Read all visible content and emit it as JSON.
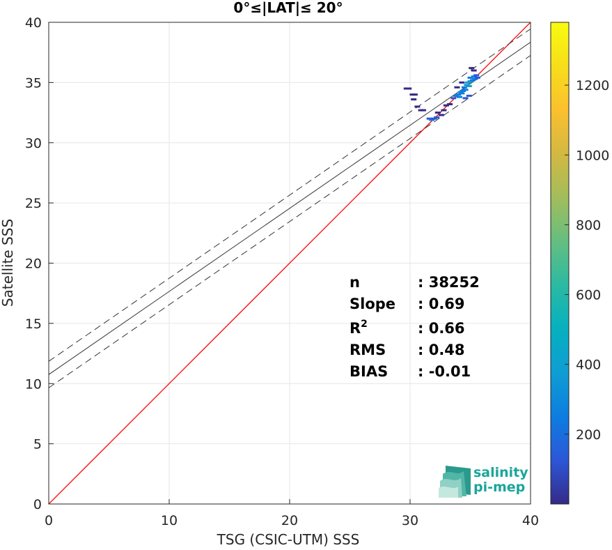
{
  "chart_data": {
    "type": "scatter",
    "title": "0°≤|LAT|≤ 20°",
    "xlabel": "TSG (CSIC-UTM) SSS",
    "ylabel": "Satellite SSS",
    "xlim": [
      0,
      40
    ],
    "ylim": [
      0,
      40
    ],
    "xticks": [
      0,
      10,
      20,
      30,
      40
    ],
    "yticks": [
      0,
      5,
      10,
      15,
      20,
      25,
      30,
      35,
      40
    ],
    "grid": true,
    "one_to_one_line": {
      "from": [
        0,
        0
      ],
      "to": [
        40,
        40
      ],
      "color": "#ff0000"
    },
    "regression": {
      "slope": 0.69,
      "intercept": 10.75,
      "band_offset": 1.1
    },
    "density_points": [
      {
        "x": 29.7,
        "y": 34.5,
        "count": 40
      },
      {
        "x": 29.9,
        "y": 34.5,
        "count": 40
      },
      {
        "x": 30.2,
        "y": 34.0,
        "count": 30
      },
      {
        "x": 30.4,
        "y": 34.0,
        "count": 30
      },
      {
        "x": 30.3,
        "y": 33.6,
        "count": 30
      },
      {
        "x": 30.6,
        "y": 33.0,
        "count": 30
      },
      {
        "x": 30.9,
        "y": 32.7,
        "count": 30
      },
      {
        "x": 31.1,
        "y": 32.7,
        "count": 30
      },
      {
        "x": 31.6,
        "y": 32.0,
        "count": 120
      },
      {
        "x": 31.8,
        "y": 31.9,
        "count": 200
      },
      {
        "x": 32.0,
        "y": 32.0,
        "count": 180
      },
      {
        "x": 32.2,
        "y": 32.1,
        "count": 120
      },
      {
        "x": 32.3,
        "y": 32.5,
        "count": 60
      },
      {
        "x": 32.6,
        "y": 32.3,
        "count": 60
      },
      {
        "x": 32.8,
        "y": 32.7,
        "count": 60
      },
      {
        "x": 33.0,
        "y": 33.1,
        "count": 60
      },
      {
        "x": 33.3,
        "y": 33.2,
        "count": 60
      },
      {
        "x": 33.6,
        "y": 33.7,
        "count": 150
      },
      {
        "x": 33.8,
        "y": 33.9,
        "count": 250
      },
      {
        "x": 34.0,
        "y": 34.0,
        "count": 300
      },
      {
        "x": 34.1,
        "y": 33.8,
        "count": 260
      },
      {
        "x": 34.2,
        "y": 34.2,
        "count": 350
      },
      {
        "x": 34.3,
        "y": 34.1,
        "count": 300
      },
      {
        "x": 34.4,
        "y": 34.3,
        "count": 280
      },
      {
        "x": 34.5,
        "y": 34.6,
        "count": 300
      },
      {
        "x": 34.6,
        "y": 34.4,
        "count": 300
      },
      {
        "x": 34.7,
        "y": 34.8,
        "count": 350
      },
      {
        "x": 34.8,
        "y": 35.0,
        "count": 400
      },
      {
        "x": 34.9,
        "y": 34.7,
        "count": 320
      },
      {
        "x": 35.0,
        "y": 35.1,
        "count": 360
      },
      {
        "x": 35.0,
        "y": 35.4,
        "count": 260
      },
      {
        "x": 35.2,
        "y": 35.2,
        "count": 300
      },
      {
        "x": 35.3,
        "y": 35.5,
        "count": 240
      },
      {
        "x": 35.4,
        "y": 35.3,
        "count": 200
      },
      {
        "x": 35.5,
        "y": 35.6,
        "count": 160
      },
      {
        "x": 35.6,
        "y": 35.4,
        "count": 120
      },
      {
        "x": 35.1,
        "y": 36.2,
        "count": 40
      },
      {
        "x": 35.3,
        "y": 36.0,
        "count": 40
      },
      {
        "x": 34.6,
        "y": 33.7,
        "count": 80
      },
      {
        "x": 34.9,
        "y": 33.9,
        "count": 80
      },
      {
        "x": 34.3,
        "y": 35.0,
        "count": 60
      },
      {
        "x": 33.9,
        "y": 34.6,
        "count": 60
      }
    ],
    "colorbar": {
      "min": 0,
      "max": 1380,
      "ticks": [
        200,
        400,
        600,
        800,
        1000,
        1200
      ],
      "colors": [
        "#352a87",
        "#2c57d8",
        "#0d7de0",
        "#0f9dd3",
        "#06b0c0",
        "#2bbaa2",
        "#65be80",
        "#a2bd5c",
        "#d3b842",
        "#fbc02e",
        "#f7de1b",
        "#f9fb0e"
      ]
    },
    "stats": [
      {
        "label": "n",
        "value": ": 38252"
      },
      {
        "label": "Slope",
        "value": ": 0.69"
      },
      {
        "label": "R",
        "sup": "2",
        "value": ": 0.66"
      },
      {
        "label": "RMS",
        "value": ": 0.48"
      },
      {
        "label": "BIAS",
        "value": ": -0.01"
      }
    ]
  },
  "logo": {
    "line1": "salinity",
    "line2": "pi-mep"
  }
}
